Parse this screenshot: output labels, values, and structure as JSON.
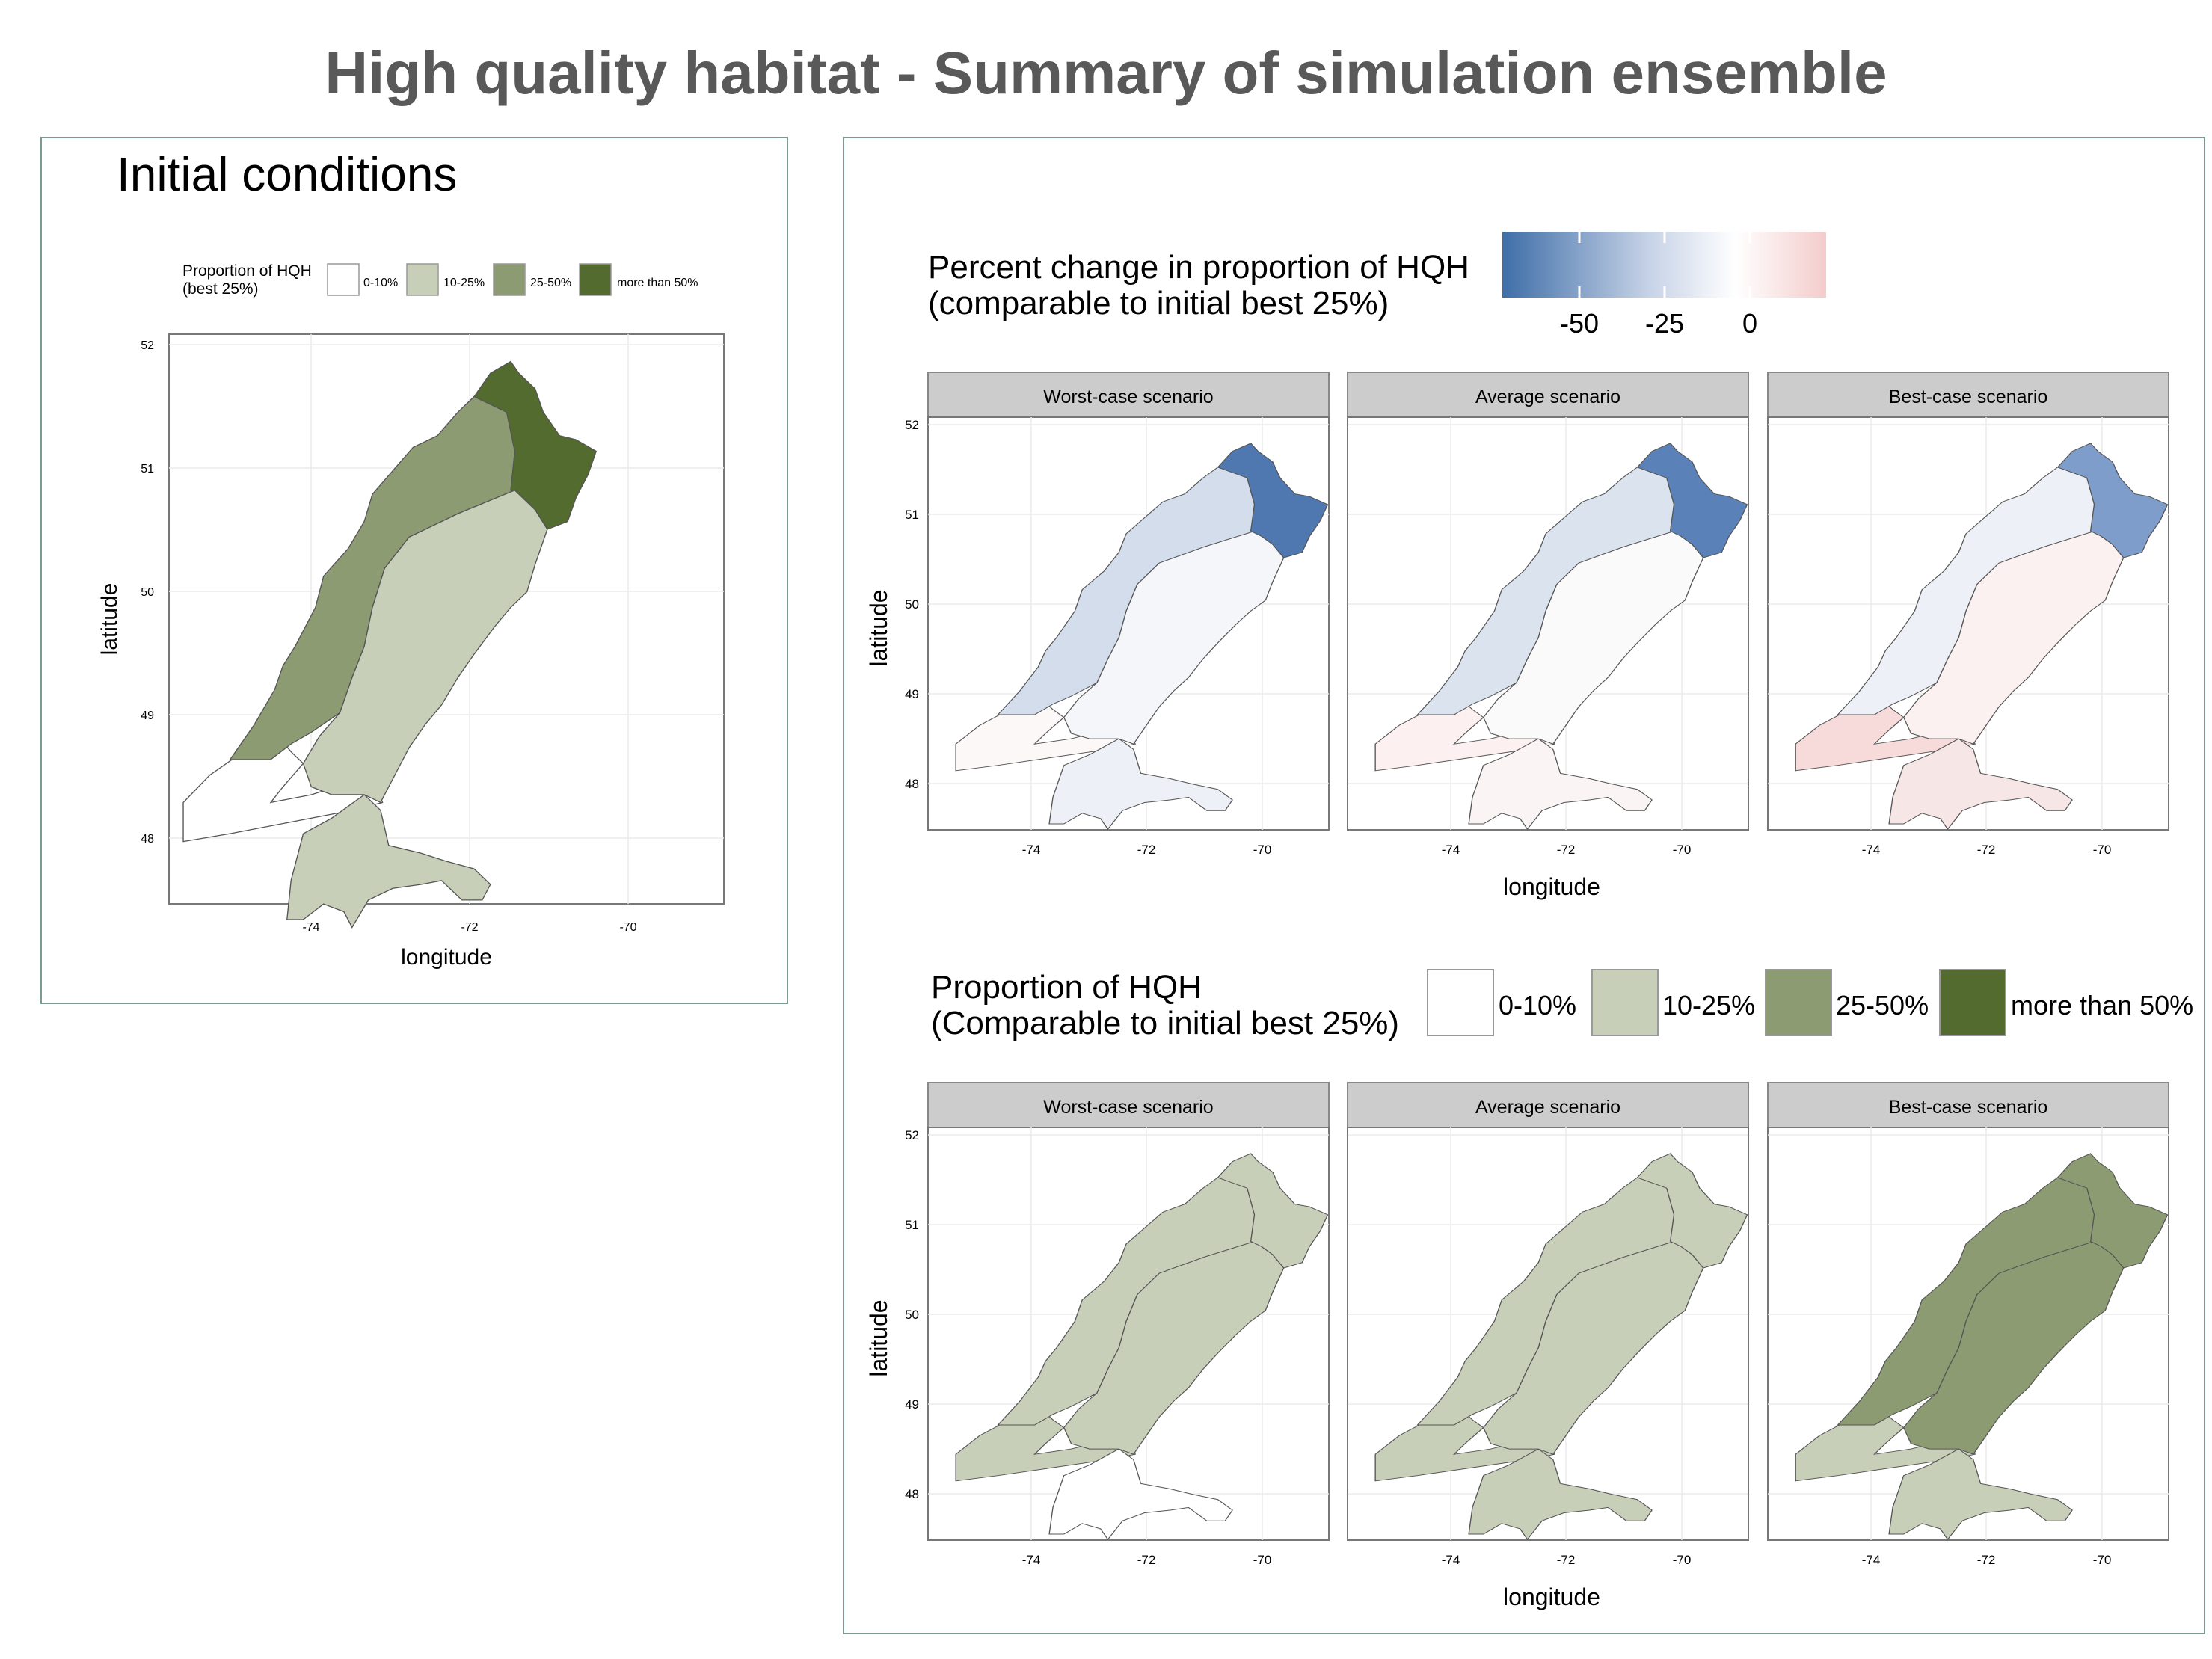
{
  "title": "High quality habitat  - Summary of simulation ensemble",
  "colors": {
    "class_0_10": "#ffffff",
    "class_10_25": "#c7cfb8",
    "class_25_50": "#8c9b72",
    "class_50_plus": "#536b2e",
    "diverging_low": "#3e6ea8",
    "diverging_mid": "#f9f9f9",
    "diverging_high": "#f4cccc",
    "strip_bg": "#cccccc"
  },
  "initial": {
    "title": "Initial conditions",
    "legend_title": [
      "Proportion of HQH",
      "(best 25%)"
    ],
    "legend_items": [
      "0-10%",
      "10-25%",
      "25-50%",
      "more than 50%"
    ],
    "x_ticks": [
      "-74",
      "-72",
      "-70"
    ],
    "y_ticks": [
      "52",
      "51",
      "50",
      "49",
      "48"
    ],
    "xlabel": "longitude",
    "ylabel": "latitude"
  },
  "change": {
    "legend_title": [
      "Percent change in proportion of HQH",
      "(comparable to initial best 25%)"
    ],
    "colorbar_ticks": [
      "-50",
      "-25",
      "0"
    ],
    "facets": [
      "Worst-case scenario",
      "Average scenario",
      "Best-case scenario"
    ],
    "x_ticks": [
      "-74",
      "-72",
      "-70"
    ],
    "y_ticks": [
      "52",
      "51",
      "50",
      "49",
      "48"
    ],
    "xlabel": "longitude",
    "ylabel": "latitude"
  },
  "proportion": {
    "legend_title": [
      "Proportion of HQH",
      "(Comparable to initial best 25%)"
    ],
    "legend_items": [
      "0-10%",
      "10-25%",
      "25-50%",
      "more than 50%"
    ],
    "facets": [
      "Worst-case scenario",
      "Average scenario",
      "Best-case scenario"
    ],
    "x_ticks": [
      "-74",
      "-72",
      "-70"
    ],
    "y_ticks": [
      "52",
      "51",
      "50",
      "49",
      "48"
    ],
    "xlabel": "longitude",
    "ylabel": "latitude"
  },
  "region_fills": {
    "initial": [
      "class_0_10",
      "class_10_25",
      "class_25_50",
      "class_50_plus",
      "class_10_25"
    ],
    "change": [
      [
        "#fcf8f8",
        "#edf0f6",
        "#f5f6f9",
        "#d3ddec",
        "#4f78b0"
      ],
      [
        "#fcf0f0",
        "#fbf4f4",
        "#fafafa",
        "#dbe3ef",
        "#5a82b8"
      ],
      [
        "#f7dada",
        "#f7e6e6",
        "#fbf1f1",
        "#eef0f7",
        "#7e9dcb"
      ]
    ],
    "proportion": [
      [
        "class_10_25",
        "class_0_10",
        "class_10_25",
        "class_10_25",
        "class_10_25"
      ],
      [
        "class_10_25",
        "class_10_25",
        "class_10_25",
        "class_10_25",
        "class_10_25"
      ],
      [
        "class_10_25",
        "class_10_25",
        "class_25_50",
        "class_25_50",
        "class_25_50"
      ]
    ]
  }
}
